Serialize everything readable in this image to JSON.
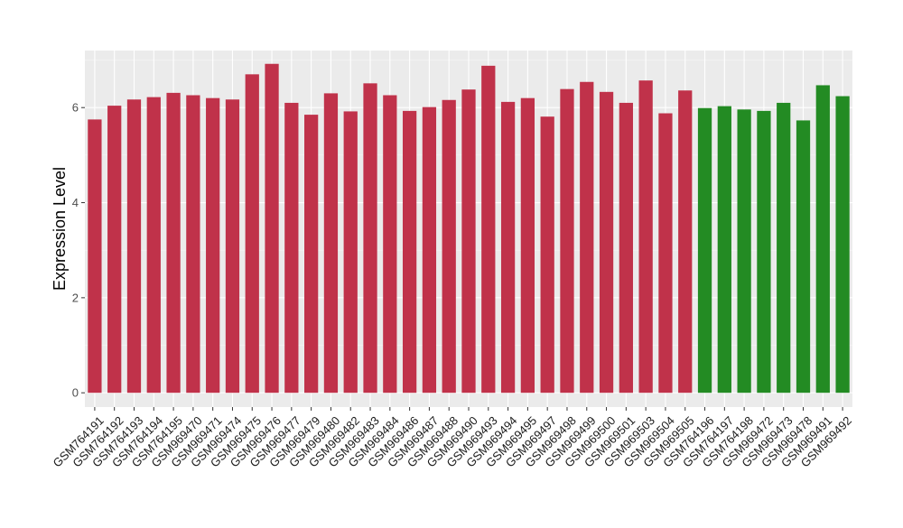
{
  "chart_data": {
    "type": "bar",
    "title": "",
    "xlabel": "",
    "ylabel": "Expression Level",
    "ylim": [
      -0.3,
      7.2
    ],
    "yticks": [
      0,
      2,
      4,
      6
    ],
    "grid": true,
    "legend": "none",
    "colors": {
      "group_a": "#c0324a",
      "group_b": "#238b23",
      "panel_bg": "#ebebeb"
    },
    "categories": [
      "GSM764191",
      "GSM764192",
      "GSM764193",
      "GSM764194",
      "GSM764195",
      "GSM969470",
      "GSM969471",
      "GSM969474",
      "GSM969475",
      "GSM969476",
      "GSM969477",
      "GSM969479",
      "GSM969480",
      "GSM969482",
      "GSM969483",
      "GSM969484",
      "GSM969486",
      "GSM969487",
      "GSM969488",
      "GSM969490",
      "GSM969493",
      "GSM969494",
      "GSM969495",
      "GSM969497",
      "GSM969498",
      "GSM969499",
      "GSM969500",
      "GSM969501",
      "GSM969503",
      "GSM969504",
      "GSM969505",
      "GSM764196",
      "GSM764197",
      "GSM764198",
      "GSM969472",
      "GSM969473",
      "GSM969478",
      "GSM969491",
      "GSM969492"
    ],
    "values": [
      5.75,
      6.04,
      6.17,
      6.22,
      6.31,
      6.26,
      6.2,
      6.17,
      6.7,
      6.92,
      6.1,
      5.85,
      6.3,
      5.92,
      6.51,
      6.26,
      5.93,
      6.01,
      6.16,
      6.38,
      6.88,
      6.12,
      6.2,
      5.81,
      6.39,
      6.54,
      6.33,
      6.1,
      6.57,
      5.88,
      6.36,
      5.99,
      6.03,
      5.96,
      5.93,
      6.1,
      5.73,
      6.47,
      6.24
    ],
    "groups": [
      "a",
      "a",
      "a",
      "a",
      "a",
      "a",
      "a",
      "a",
      "a",
      "a",
      "a",
      "a",
      "a",
      "a",
      "a",
      "a",
      "a",
      "a",
      "a",
      "a",
      "a",
      "a",
      "a",
      "a",
      "a",
      "a",
      "a",
      "a",
      "a",
      "a",
      "a",
      "b",
      "b",
      "b",
      "b",
      "b",
      "b",
      "b",
      "b"
    ]
  }
}
